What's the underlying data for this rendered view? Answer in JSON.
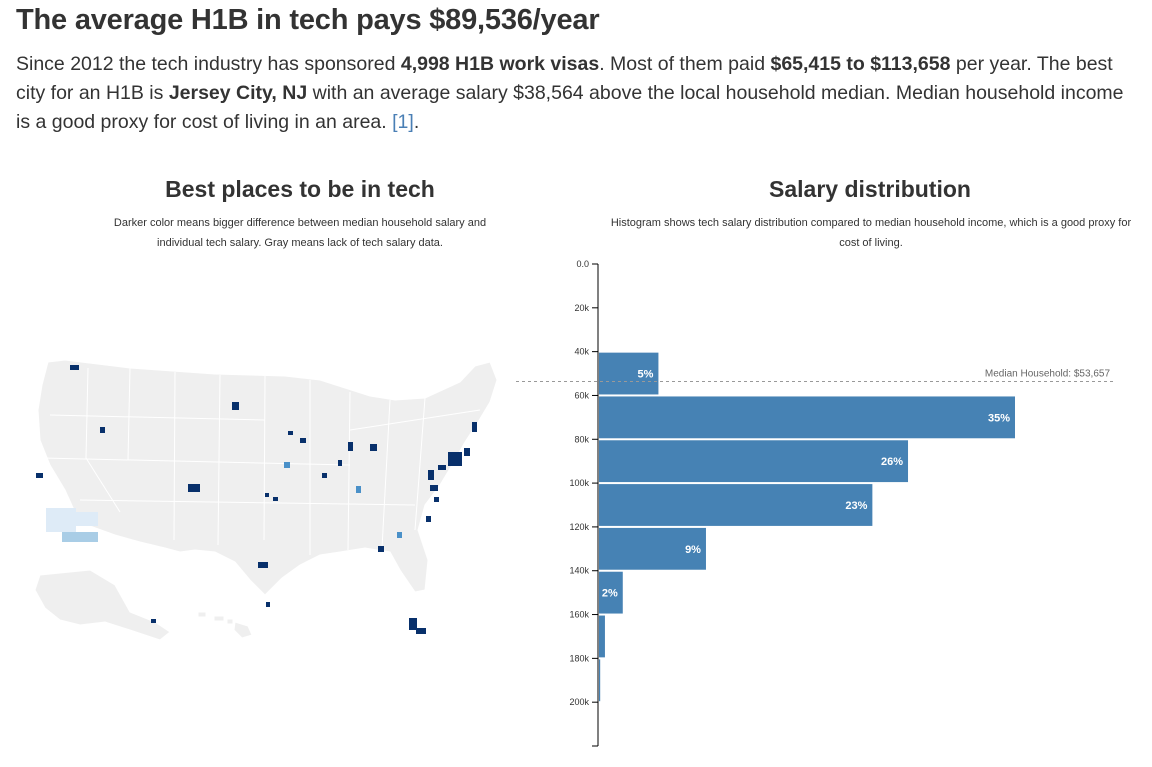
{
  "page": {
    "title": "The average H1B in tech pays $89,536/year",
    "intro": {
      "t1": "Since 2012 the tech industry has sponsored ",
      "b1": "4,998 H1B work visas",
      "t2": ". Most of them paid ",
      "b2": "$65,415 to $113,658",
      "t3": " per year. The best city for an H1B is ",
      "b3": "Jersey City, NJ",
      "t4": " with an average salary $38,564 above the local household median. Median household income is a good proxy for cost of living in an area. ",
      "ref": "[1]",
      "t5": "."
    }
  },
  "map": {
    "title": "Best places to be in tech",
    "subtitle": "Darker color means bigger difference between median household salary and individual tech salary. Gray means lack of tech salary data.",
    "colors": {
      "land": "#efefef",
      "lines": "#ffffff",
      "dark": "#08306b",
      "mid": "#4a90c8",
      "light": "#a9cde6",
      "pale": "#deebf7"
    }
  },
  "chart_data": {
    "type": "bar",
    "orientation": "horizontal",
    "title": "Salary distribution",
    "subtitle": "Histogram shows tech salary distribution compared to median household income, which is a good proxy for cost of living.",
    "bin_edges": [
      40000,
      60000,
      80000,
      100000,
      120000,
      140000,
      160000,
      180000,
      200000
    ],
    "bin_start": [
      40000,
      60000,
      80000,
      100000,
      120000,
      140000,
      160000,
      180000
    ],
    "percent": [
      5,
      35,
      26,
      23,
      9,
      2,
      0.5,
      0.1
    ],
    "bar_labels": [
      "5%",
      "35%",
      "26%",
      "23%",
      "9%",
      "2%",
      "",
      ""
    ],
    "ylim": [
      0,
      220000
    ],
    "y_ticks": [
      0,
      20000,
      40000,
      60000,
      80000,
      100000,
      120000,
      140000,
      160000,
      180000,
      200000
    ],
    "y_tick_labels": [
      "0.0",
      "20k",
      "40k",
      "60k",
      "80k",
      "100k",
      "120k",
      "140k",
      "160k",
      "180k",
      "200k"
    ],
    "median_household": 53657,
    "median_label": "Median Household: $53,657",
    "bar_color": "#4682b4",
    "median_color": "#999999"
  }
}
